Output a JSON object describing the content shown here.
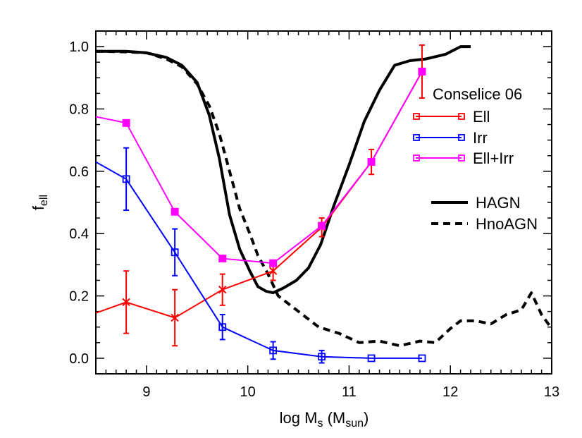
{
  "chart_data": {
    "type": "line",
    "xlabel": {
      "main": "log M",
      "sub": "s",
      "rest": " (M",
      "sub2": "sun",
      "end": ")"
    },
    "ylabel": {
      "main": "f",
      "sub": "ell"
    },
    "xlim": [
      8.5,
      13.0
    ],
    "ylim": [
      -0.05,
      1.05
    ],
    "xticks": [
      9,
      10,
      11,
      12,
      13
    ],
    "yticks": [
      0.0,
      0.2,
      0.4,
      0.6,
      0.8,
      1.0
    ],
    "ytick_labels": [
      "0.0",
      "0.2",
      "0.4",
      "0.6",
      "0.8",
      "1.0"
    ],
    "legend_title": "Conselice 06",
    "legend_placement": "right",
    "grid": false,
    "observed_series": [
      {
        "name": "Ell",
        "color": "#ff0000",
        "marker": "x",
        "x": [
          8.5,
          8.8,
          9.28,
          9.75,
          10.25,
          10.73,
          11.22,
          11.72
        ],
        "y": [
          0.145,
          0.18,
          0.13,
          0.22,
          0.28,
          0.42,
          0.63,
          0.92
        ],
        "err": [
          null,
          0.1,
          0.09,
          0.05,
          0.03,
          0.03,
          0.04,
          0.085
        ]
      },
      {
        "name": "Irr",
        "color": "#0000ff",
        "marker": "open-square",
        "x": [
          8.5,
          8.8,
          9.28,
          9.75,
          10.25,
          10.73,
          11.22,
          11.72
        ],
        "y": [
          0.63,
          0.575,
          0.34,
          0.1,
          0.025,
          0.005,
          0.0,
          0.0
        ],
        "err": [
          null,
          0.1,
          0.075,
          0.04,
          0.028,
          0.02,
          null,
          null
        ]
      },
      {
        "name": "Ell+Irr",
        "color": "#ff00ff",
        "marker": "filled-square",
        "x": [
          8.5,
          8.8,
          9.28,
          9.75,
          10.25,
          10.73,
          11.22,
          11.72
        ],
        "y": [
          0.775,
          0.755,
          0.47,
          0.32,
          0.305,
          0.425,
          0.63,
          0.92
        ],
        "err": [
          null,
          null,
          null,
          null,
          null,
          null,
          null,
          null
        ]
      }
    ],
    "model_series": [
      {
        "name": "HAGN",
        "color": "#000000",
        "dash": "solid",
        "x": [
          8.5,
          8.8,
          9.0,
          9.2,
          9.35,
          9.5,
          9.62,
          9.72,
          9.82,
          9.92,
          10.02,
          10.1,
          10.18,
          10.25,
          10.35,
          10.48,
          10.6,
          10.72,
          10.85,
          11.0,
          11.15,
          11.3,
          11.45,
          11.6,
          11.75,
          11.95,
          12.1,
          12.2
        ],
        "y": [
          0.985,
          0.985,
          0.98,
          0.965,
          0.94,
          0.885,
          0.78,
          0.64,
          0.46,
          0.35,
          0.28,
          0.23,
          0.215,
          0.21,
          0.225,
          0.25,
          0.29,
          0.365,
          0.49,
          0.62,
          0.76,
          0.86,
          0.94,
          0.955,
          0.96,
          0.975,
          1.0,
          1.0
        ]
      },
      {
        "name": "HnoAGN",
        "color": "#000000",
        "dash": "dashed",
        "x": [
          8.5,
          8.8,
          9.0,
          9.2,
          9.35,
          9.5,
          9.62,
          9.72,
          9.82,
          9.92,
          10.02,
          10.1,
          10.2,
          10.3,
          10.5,
          10.7,
          10.9,
          11.1,
          11.3,
          11.5,
          11.7,
          11.85,
          12.0,
          12.1,
          12.25,
          12.4,
          12.55,
          12.7,
          12.8,
          12.9,
          13.0
        ],
        "y": [
          0.985,
          0.983,
          0.98,
          0.96,
          0.935,
          0.88,
          0.81,
          0.72,
          0.6,
          0.48,
          0.4,
          0.33,
          0.27,
          0.2,
          0.15,
          0.1,
          0.08,
          0.05,
          0.055,
          0.04,
          0.055,
          0.05,
          0.095,
          0.12,
          0.12,
          0.11,
          0.14,
          0.155,
          0.21,
          0.14,
          0.095
        ]
      }
    ]
  }
}
